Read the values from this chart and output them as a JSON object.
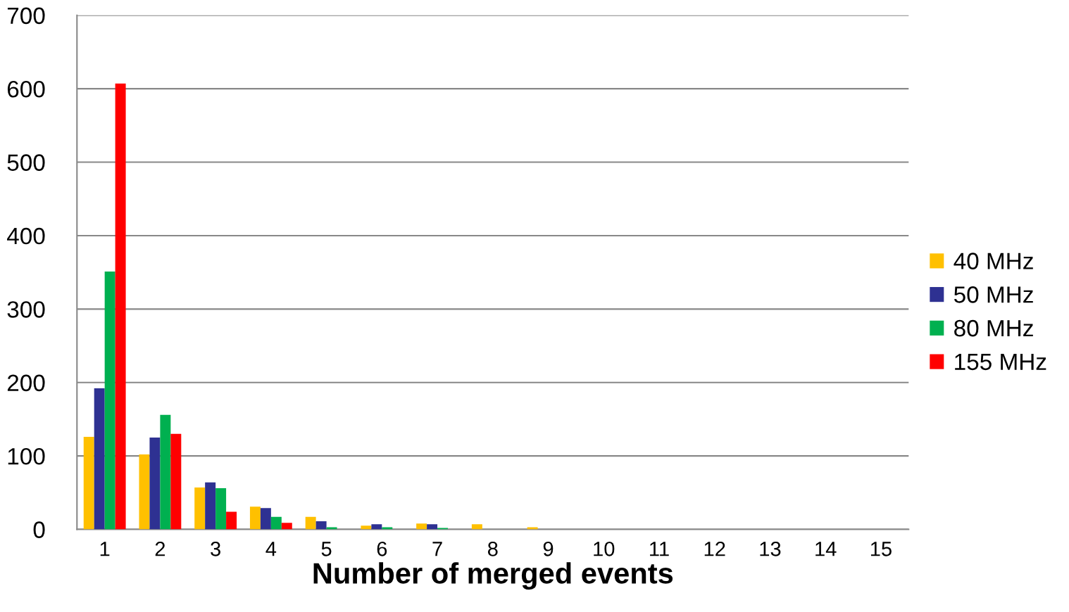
{
  "chart_data": {
    "type": "bar",
    "xlabel": "Number of merged events",
    "categories": [
      "1",
      "2",
      "3",
      "4",
      "5",
      "6",
      "7",
      "8",
      "9",
      "10",
      "11",
      "12",
      "13",
      "14",
      "15"
    ],
    "series": [
      {
        "name": "40 MHz",
        "color": "#ffc000",
        "values": [
          126,
          102,
          57,
          31,
          17,
          5,
          8,
          7,
          3,
          0,
          0,
          0,
          0,
          0,
          0
        ]
      },
      {
        "name": "50 MHz",
        "color": "#2e3192",
        "values": [
          192,
          125,
          64,
          29,
          11,
          7,
          7,
          0,
          null,
          0,
          0,
          0,
          0,
          0,
          0
        ]
      },
      {
        "name": "80 MHz",
        "color": "#00b050",
        "values": [
          351,
          156,
          56,
          17,
          3,
          3,
          2,
          0,
          0,
          0,
          0,
          0,
          0,
          0,
          0
        ]
      },
      {
        "name": "155 MHz",
        "color": "#ff0000",
        "values": [
          607,
          130,
          24,
          9,
          0,
          0,
          0,
          0,
          0,
          0,
          0,
          0,
          0,
          0,
          0
        ]
      }
    ],
    "ylim": [
      0,
      700
    ],
    "yticks": [
      0,
      100,
      200,
      300,
      400,
      500,
      600,
      700
    ],
    "grid": "y",
    "legend": "right"
  }
}
